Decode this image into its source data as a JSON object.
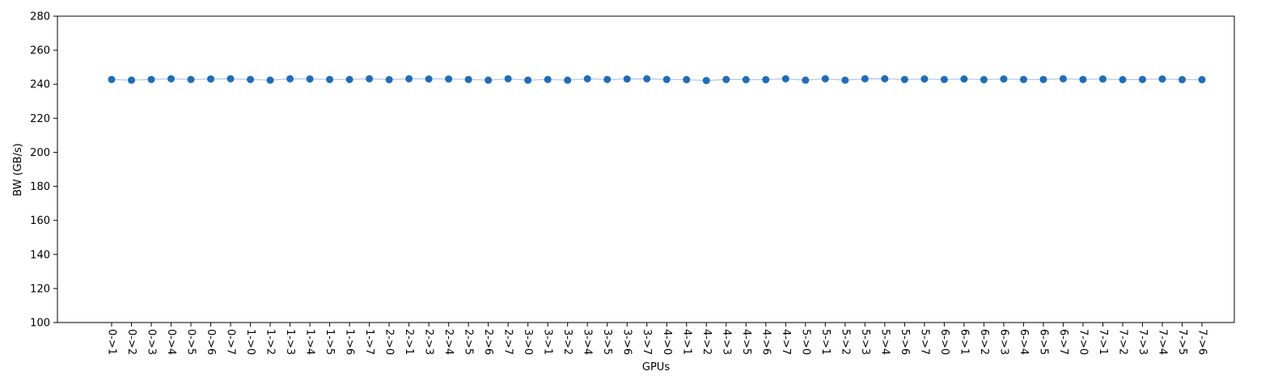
{
  "chart_data": {
    "type": "line",
    "title": "",
    "xlabel": "GPUs",
    "ylabel": "BW (GB/s)",
    "ylim": [
      100,
      280
    ],
    "yticks": [
      100,
      120,
      140,
      160,
      180,
      200,
      220,
      240,
      260,
      280
    ],
    "grid": false,
    "colors": {
      "line": "#a8c4f5",
      "marker": "#1f6cb8"
    },
    "categories": [
      "0->1",
      "0->2",
      "0->3",
      "0->4",
      "0->5",
      "0->6",
      "0->7",
      "1->0",
      "1->2",
      "1->3",
      "1->4",
      "1->5",
      "1->6",
      "1->7",
      "2->0",
      "2->1",
      "2->3",
      "2->4",
      "2->5",
      "2->6",
      "2->7",
      "3->0",
      "3->1",
      "3->2",
      "3->4",
      "3->5",
      "3->6",
      "3->7",
      "4->0",
      "4->1",
      "4->2",
      "4->3",
      "4->5",
      "4->6",
      "4->7",
      "5->0",
      "5->1",
      "5->2",
      "5->3",
      "5->4",
      "5->6",
      "5->7",
      "6->0",
      "6->1",
      "6->2",
      "6->3",
      "6->4",
      "6->5",
      "6->7",
      "7->0",
      "7->1",
      "7->2",
      "7->3",
      "7->4",
      "7->5",
      "7->6"
    ],
    "values": [
      242.8,
      242.4,
      242.8,
      243.2,
      242.8,
      243.1,
      243.2,
      242.8,
      242.4,
      243.2,
      243.1,
      242.8,
      242.8,
      243.2,
      242.7,
      243.2,
      243.1,
      243.1,
      242.8,
      242.4,
      243.2,
      242.4,
      242.8,
      242.4,
      243.2,
      242.8,
      243.1,
      243.2,
      242.8,
      242.7,
      242.2,
      242.8,
      242.7,
      242.7,
      243.2,
      242.4,
      243.2,
      242.4,
      243.2,
      243.2,
      242.8,
      243.1,
      242.8,
      243.1,
      242.7,
      243.1,
      242.8,
      242.8,
      243.2,
      242.8,
      243.1,
      242.7,
      242.8,
      243.1,
      242.7,
      242.7
    ]
  }
}
